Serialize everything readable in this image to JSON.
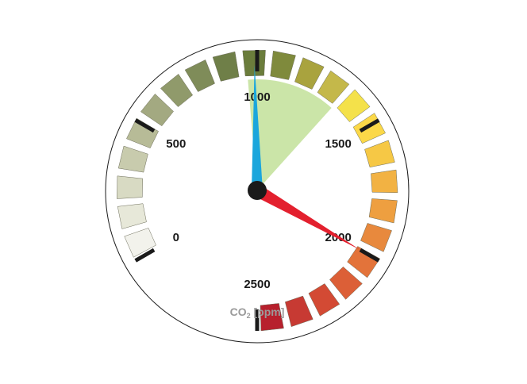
{
  "gauge": {
    "unit_prefix": "CO",
    "unit_subscript": "2",
    "unit_suffix": " [ppm]",
    "min": 0,
    "max": 2500,
    "tick_labels": [
      "0",
      "500",
      "1000",
      "1500",
      "2000",
      "2500"
    ],
    "tick_values": [
      0,
      500,
      1000,
      1500,
      2000,
      2500
    ],
    "current_value": 2000,
    "secondary_value": 990,
    "reference_range": [
      960,
      1350
    ],
    "colors": {
      "main_needle": "#e3202e",
      "secondary_needle": "#1ba6dc",
      "hub": "#1a1a1a",
      "range_fill": "#8cc63f",
      "bezel": "#1a1a1a",
      "major_tick": "#1a1a1a"
    },
    "segment_colors": [
      "#f2f2ec",
      "#e7e8d9",
      "#d8dac3",
      "#c8cbad",
      "#b7bb97",
      "#a3a981",
      "#909a6b",
      "#7f8c59",
      "#6f7f48",
      "#6b7d3c",
      "#7f8a3c",
      "#a9a33e",
      "#c4b84a",
      "#f4e14a",
      "#fbd848",
      "#f6c845",
      "#f2b243",
      "#ee9f40",
      "#e8893d",
      "#e3733a",
      "#dc5f37",
      "#d34a34",
      "#c73a33",
      "#b7202d"
    ]
  }
}
